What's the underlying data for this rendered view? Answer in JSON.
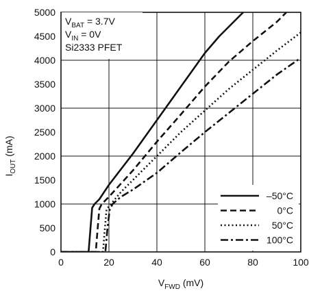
{
  "chart_data": {
    "type": "line",
    "xlabel": {
      "main": "V",
      "sub": "FWD",
      "unit": " (mV)"
    },
    "ylabel": {
      "main": "I",
      "sub": "OUT",
      "unit": " (mA)"
    },
    "xlim": [
      0,
      100
    ],
    "ylim": [
      0,
      5000
    ],
    "x_ticks": [
      "0",
      "20",
      "40",
      "60",
      "80",
      "100"
    ],
    "y_ticks": [
      "0",
      "500",
      "1000",
      "1500",
      "2000",
      "2500",
      "3000",
      "3500",
      "4000",
      "4500",
      "5000"
    ],
    "grid": true,
    "legend_position": "bottom-right",
    "annotations": [
      {
        "main": "V",
        "sub": "BAT",
        "rest": " = 3.7V"
      },
      {
        "main": "V",
        "sub": "IN",
        "rest": " = 0V"
      },
      {
        "main": "Si2333 PFET",
        "sub": "",
        "rest": ""
      }
    ],
    "series": [
      {
        "name": "–50°C",
        "style": "solid",
        "color": "#111111",
        "x": [
          0,
          11.5,
          12.3,
          13.0,
          14.0,
          16,
          20,
          30,
          40,
          50,
          60,
          66,
          70,
          76
        ],
        "y": [
          0,
          0,
          500,
          920,
          1000,
          1100,
          1400,
          2050,
          2750,
          3450,
          4150,
          4500,
          4700,
          5000
        ]
      },
      {
        "name": "0°C",
        "style": "dashed",
        "color": "#111111",
        "x": [
          0,
          14.5,
          15.3,
          16.0,
          17.0,
          20,
          30,
          40,
          50,
          60,
          70,
          80,
          90,
          94
        ],
        "y": [
          0,
          0,
          500,
          900,
          1000,
          1150,
          1700,
          2300,
          2870,
          3450,
          3970,
          4400,
          4800,
          5000
        ]
      },
      {
        "name": "50°C",
        "style": "dotted",
        "color": "#111111",
        "x": [
          0,
          17.5,
          18.3,
          19.0,
          20.0,
          25,
          30,
          40,
          50,
          60,
          70,
          80,
          90,
          100
        ],
        "y": [
          0,
          0,
          500,
          880,
          950,
          1250,
          1500,
          2000,
          2500,
          2950,
          3400,
          3800,
          4200,
          4580
        ]
      },
      {
        "name": "100°C",
        "style": "dashdot",
        "color": "#111111",
        "x": [
          0,
          18.5,
          19.4,
          20.3,
          21.5,
          25,
          30,
          40,
          50,
          60,
          70,
          80,
          90,
          100
        ],
        "y": [
          0,
          0,
          500,
          880,
          1000,
          1150,
          1300,
          1650,
          2080,
          2500,
          2900,
          3300,
          3700,
          4050
        ]
      }
    ]
  }
}
